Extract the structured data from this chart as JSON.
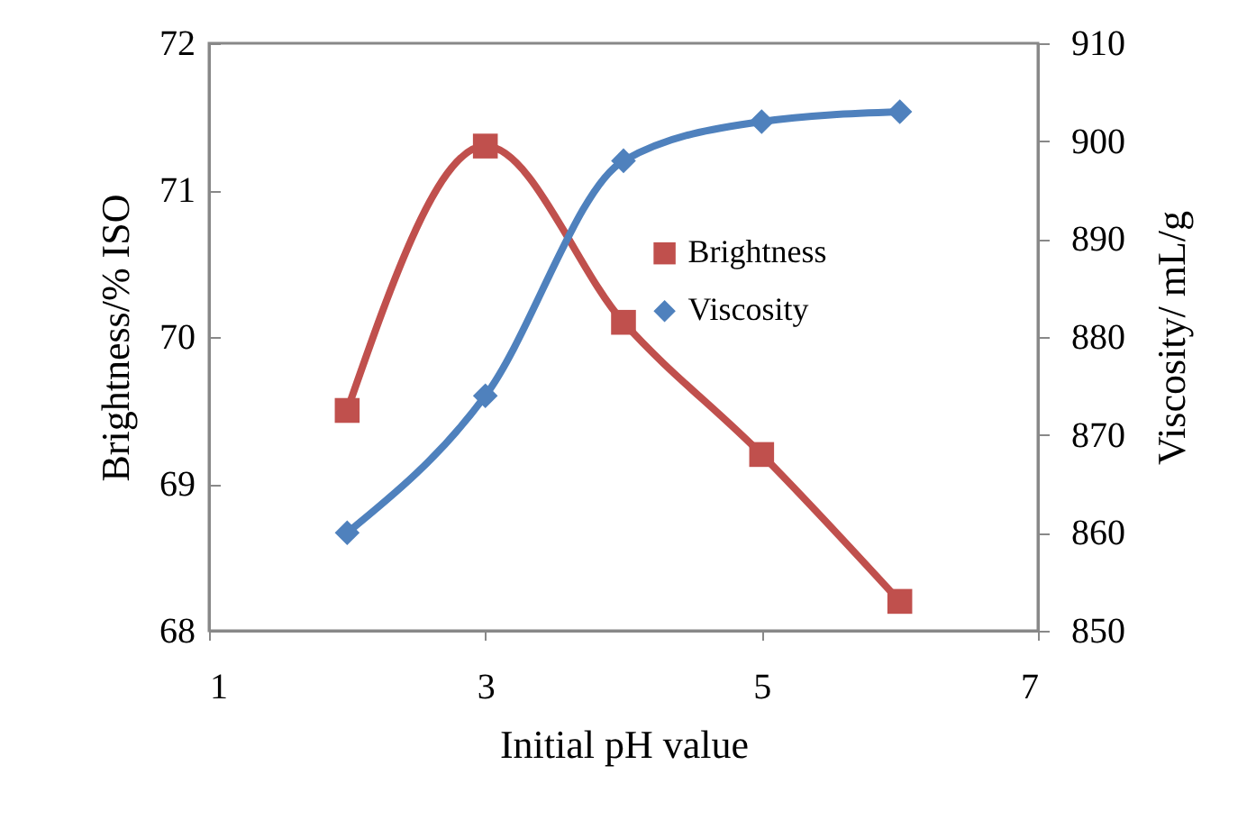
{
  "chart_data": {
    "type": "line",
    "xlabel": "Initial pH value",
    "ylabel": "Brightness/% ISO",
    "y2label": "Viscosity/ mL/g",
    "x": [
      2,
      3,
      4,
      5,
      6
    ],
    "series": [
      {
        "name": "Brightness",
        "color": "#c0504d",
        "marker": "square",
        "values": [
          69.5,
          71.3,
          70.1,
          69.2,
          68.2
        ]
      },
      {
        "name": "Viscosity",
        "color": "#4f81bd",
        "marker": "diamond",
        "axis": "y2",
        "values": [
          860,
          874,
          898,
          902,
          903
        ]
      }
    ],
    "xlim": [
      1,
      7
    ],
    "xticks": [
      1,
      3,
      5,
      7
    ],
    "ylim": [
      68,
      72
    ],
    "yticks": [
      68,
      69,
      70,
      71,
      72
    ],
    "y2lim": [
      850,
      910
    ],
    "y2ticks": [
      850,
      860,
      870,
      880,
      890,
      900,
      910
    ],
    "grid": false,
    "legend": "right"
  }
}
